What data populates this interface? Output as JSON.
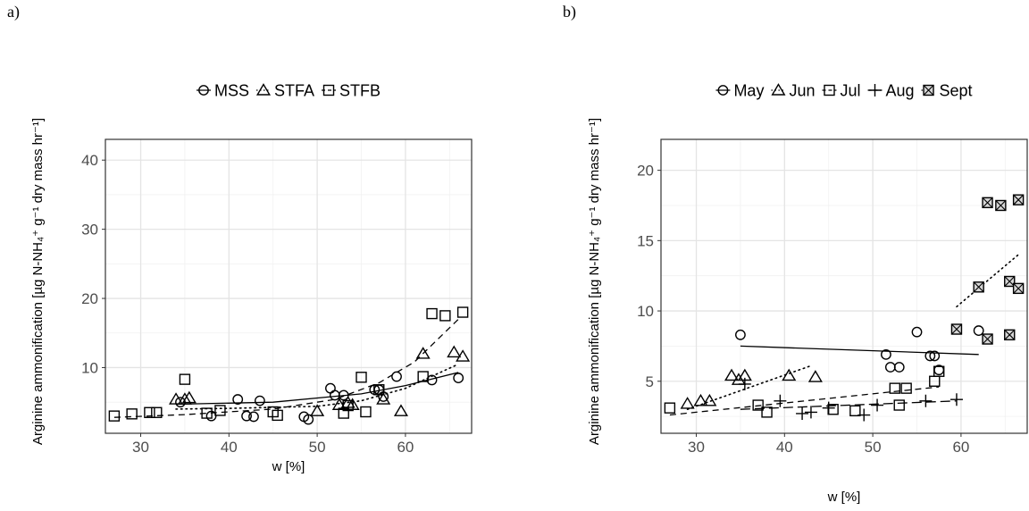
{
  "chart_data": [
    {
      "type": "scatter",
      "panel_label": "a)",
      "xlabel": "w [%]",
      "ylabel": "Arginine ammonification [µg N-NH₄⁺ g⁻¹ dry mass hr⁻¹]",
      "xlim": [
        26,
        67.5
      ],
      "ylim": [
        0.5,
        43
      ],
      "xticks": [
        30,
        40,
        50,
        60
      ],
      "yticks": [
        10,
        20,
        30,
        40
      ],
      "grid": true,
      "legend_position": "top",
      "series": [
        {
          "name": "MSS",
          "marker": "circle",
          "line": "solid",
          "points": [
            [
              34.5,
              5.0
            ],
            [
              38.0,
              3.0
            ],
            [
              41.0,
              5.4
            ],
            [
              42.0,
              3.0
            ],
            [
              42.8,
              2.9
            ],
            [
              43.5,
              5.2
            ],
            [
              48.5,
              2.9
            ],
            [
              49.0,
              2.5
            ],
            [
              51.5,
              7.0
            ],
            [
              52.0,
              6.0
            ],
            [
              53.0,
              6.0
            ],
            [
              56.5,
              6.8
            ],
            [
              57.0,
              6.8
            ],
            [
              57.5,
              5.8
            ],
            [
              59.0,
              8.7
            ],
            [
              63.0,
              8.2
            ],
            [
              66.0,
              8.5
            ]
          ],
          "fit": [
            [
              34,
              4.7
            ],
            [
              45,
              5.0
            ],
            [
              55,
              6.2
            ],
            [
              60,
              7.4
            ],
            [
              66,
              9.3
            ]
          ]
        },
        {
          "name": "STFA",
          "marker": "triangle",
          "line": "dotted",
          "points": [
            [
              34.0,
              5.4
            ],
            [
              35.0,
              5.4
            ],
            [
              35.5,
              5.6
            ],
            [
              50.0,
              3.7
            ],
            [
              52.5,
              4.6
            ],
            [
              53.5,
              4.9
            ],
            [
              54.0,
              4.6
            ],
            [
              57.5,
              5.4
            ],
            [
              59.5,
              3.7
            ],
            [
              62.0,
              12.0
            ],
            [
              65.5,
              12.2
            ],
            [
              66.5,
              11.6
            ]
          ],
          "fit": [
            [
              34,
              4.0
            ],
            [
              40,
              4.1
            ],
            [
              50,
              4.4
            ],
            [
              55,
              5.2
            ],
            [
              60,
              7.0
            ],
            [
              66,
              10.5
            ]
          ]
        },
        {
          "name": "STFB",
          "marker": "square",
          "line": "dashed",
          "points": [
            [
              27.0,
              3.0
            ],
            [
              29.0,
              3.3
            ],
            [
              31.0,
              3.5
            ],
            [
              31.8,
              3.5
            ],
            [
              35.0,
              8.3
            ],
            [
              37.5,
              3.4
            ],
            [
              39.0,
              3.8
            ],
            [
              45.0,
              3.6
            ],
            [
              45.5,
              3.1
            ],
            [
              53.0,
              3.4
            ],
            [
              53.5,
              4.5
            ],
            [
              55.0,
              8.6
            ],
            [
              55.5,
              3.6
            ],
            [
              57.0,
              6.8
            ],
            [
              62.0,
              8.7
            ],
            [
              63.0,
              17.8
            ],
            [
              64.5,
              17.5
            ],
            [
              66.5,
              18.0
            ]
          ],
          "fit": [
            [
              27,
              2.8
            ],
            [
              35,
              3.2
            ],
            [
              45,
              4.0
            ],
            [
              52,
              5.4
            ],
            [
              57,
              7.8
            ],
            [
              61,
              10.8
            ],
            [
              66,
              17.0
            ]
          ]
        }
      ]
    },
    {
      "type": "scatter",
      "panel_label": "b)",
      "xlabel": "w [%]",
      "ylabel": "Arginine ammonification [µg N-NH₄⁺ g⁻¹ dry mass hr⁻¹]",
      "xlim": [
        26,
        67.5
      ],
      "ylim": [
        1.3,
        22.2
      ],
      "xticks": [
        30,
        40,
        50,
        60
      ],
      "yticks": [
        5,
        10,
        15,
        20
      ],
      "grid": true,
      "legend_position": "top",
      "series": [
        {
          "name": "May",
          "marker": "circle",
          "line": "solid",
          "points": [
            [
              35.0,
              8.3
            ],
            [
              51.5,
              6.9
            ],
            [
              52.0,
              6.0
            ],
            [
              53.0,
              6.0
            ],
            [
              55.0,
              8.5
            ],
            [
              56.5,
              6.8
            ],
            [
              57.0,
              6.8
            ],
            [
              57.5,
              5.8
            ],
            [
              62.0,
              8.6
            ]
          ],
          "fit": [
            [
              35,
              7.5
            ],
            [
              62,
              6.9
            ]
          ]
        },
        {
          "name": "Jun",
          "marker": "triangle",
          "line": "dotted",
          "points": [
            [
              29.0,
              3.4
            ],
            [
              30.5,
              3.6
            ],
            [
              31.5,
              3.6
            ],
            [
              34.0,
              5.4
            ],
            [
              34.8,
              5.1
            ],
            [
              35.5,
              5.4
            ],
            [
              40.5,
              5.4
            ],
            [
              43.5,
              5.3
            ]
          ],
          "fit": [
            [
              29,
              3.0
            ],
            [
              43,
              6.1
            ]
          ]
        },
        {
          "name": "Jul",
          "marker": "square",
          "line": "dashed",
          "points": [
            [
              27.0,
              3.1
            ],
            [
              37.0,
              3.3
            ],
            [
              38.0,
              2.8
            ],
            [
              45.5,
              3.0
            ],
            [
              48.0,
              2.9
            ],
            [
              52.5,
              4.5
            ],
            [
              53.0,
              3.3
            ],
            [
              53.8,
              4.5
            ],
            [
              57.0,
              5.0
            ],
            [
              57.5,
              5.7
            ]
          ],
          "fit": [
            [
              27,
              2.6
            ],
            [
              57.5,
              4.6
            ]
          ]
        },
        {
          "name": "Aug",
          "marker": "plus",
          "line": "longdash",
          "points": [
            [
              35.5,
              4.8
            ],
            [
              39.5,
              3.6
            ],
            [
              42.0,
              2.7
            ],
            [
              43.0,
              2.8
            ],
            [
              45.0,
              3.1
            ],
            [
              49.0,
              2.6
            ],
            [
              50.5,
              3.3
            ],
            [
              56.0,
              3.6
            ],
            [
              59.5,
              3.7
            ]
          ],
          "fit": [
            [
              35,
              3.0
            ],
            [
              59.5,
              3.6
            ]
          ]
        },
        {
          "name": "Sept",
          "marker": "boxed-x",
          "line": "dotted",
          "points": [
            [
              59.5,
              8.7
            ],
            [
              62.0,
              11.7
            ],
            [
              63.0,
              17.7
            ],
            [
              63.0,
              8.0
            ],
            [
              64.5,
              17.5
            ],
            [
              65.5,
              12.1
            ],
            [
              65.5,
              8.3
            ],
            [
              66.5,
              17.9
            ],
            [
              66.5,
              11.6
            ]
          ],
          "fit": [
            [
              59.5,
              10.3
            ],
            [
              66.5,
              14.0
            ]
          ]
        }
      ]
    }
  ]
}
